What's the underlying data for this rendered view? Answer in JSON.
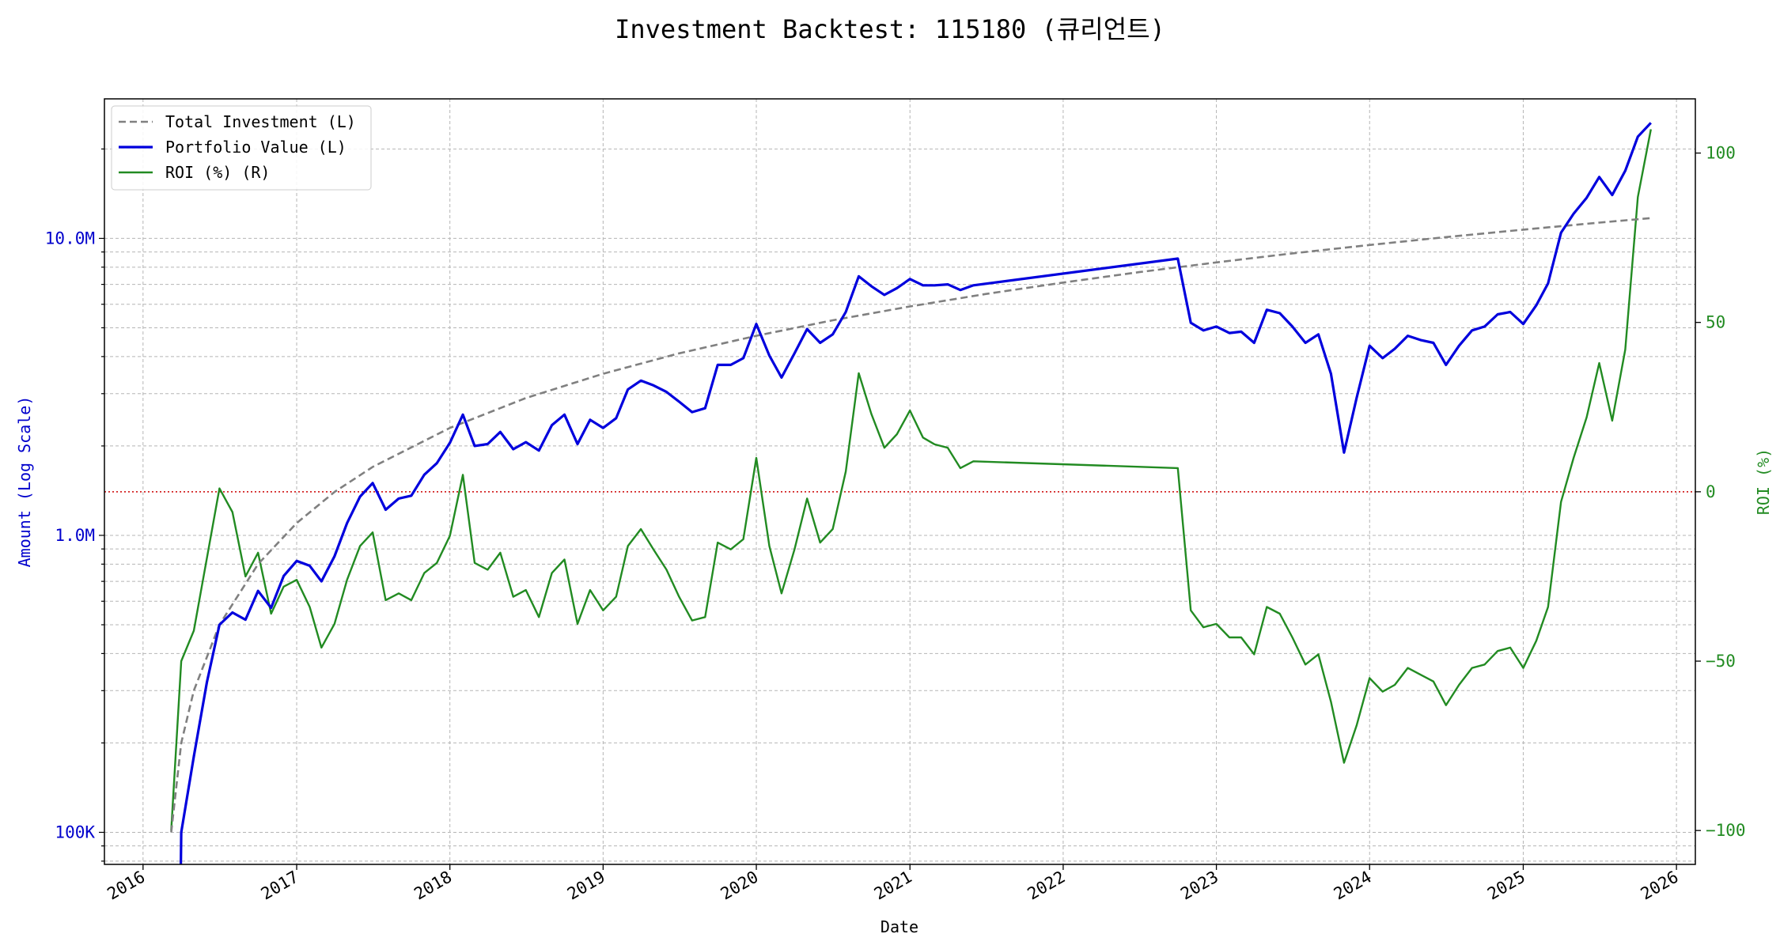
{
  "chart_data": {
    "type": "line",
    "title": "Investment Backtest: 115180 (큐리언트)",
    "xlabel": "Date",
    "ylabel_left": "Amount (Log Scale)",
    "ylabel_right": "ROI (%)",
    "x_range": [
      "2015-10-01",
      "2026-02-15"
    ],
    "y_left_range": [
      78000,
      29500000
    ],
    "y_left_scale": "log",
    "y_right_range": [
      -110,
      116
    ],
    "grid": true,
    "legend_position": "top-left",
    "x_ticks": [
      {
        "date": "2016-01-01",
        "label": "2016"
      },
      {
        "date": "2017-01-01",
        "label": "2017"
      },
      {
        "date": "2018-01-01",
        "label": "2018"
      },
      {
        "date": "2019-01-01",
        "label": "2019"
      },
      {
        "date": "2020-01-01",
        "label": "2020"
      },
      {
        "date": "2021-01-01",
        "label": "2021"
      },
      {
        "date": "2022-01-01",
        "label": "2022"
      },
      {
        "date": "2023-01-01",
        "label": "2023"
      },
      {
        "date": "2024-01-01",
        "label": "2024"
      },
      {
        "date": "2025-01-01",
        "label": "2025"
      },
      {
        "date": "2026-01-01",
        "label": "2026"
      }
    ],
    "y_left_ticks": [
      {
        "value": 100000,
        "label": "100K"
      },
      {
        "value": 1000000,
        "label": "1.0M"
      },
      {
        "value": 10000000,
        "label": "10.0M"
      }
    ],
    "y_right_ticks": [
      {
        "value": -100,
        "label": "−100"
      },
      {
        "value": -50,
        "label": "−50"
      },
      {
        "value": 0,
        "label": "0"
      },
      {
        "value": 50,
        "label": "50"
      },
      {
        "value": 100,
        "label": "100"
      }
    ],
    "reference_line": {
      "axis": "right",
      "value": 0,
      "color": "#cc0000"
    },
    "series": [
      {
        "name": "Total Investment (L)",
        "axis": "left",
        "color": "#808080",
        "style": "dashed",
        "points": [
          [
            "2016-03-08",
            100000
          ],
          [
            "2016-04-01",
            200000
          ],
          [
            "2016-05-01",
            300000
          ],
          [
            "2016-07-01",
            500000
          ],
          [
            "2016-10-01",
            800000
          ],
          [
            "2017-01-01",
            1100000
          ],
          [
            "2017-04-01",
            1400000
          ],
          [
            "2017-07-01",
            1700000
          ],
          [
            "2018-01-01",
            2300000
          ],
          [
            "2018-07-01",
            2900000
          ],
          [
            "2019-01-01",
            3500000
          ],
          [
            "2019-07-01",
            4100000
          ],
          [
            "2020-01-01",
            4700000
          ],
          [
            "2020-07-01",
            5300000
          ],
          [
            "2021-01-01",
            5900000
          ],
          [
            "2021-07-01",
            6500000
          ],
          [
            "2022-01-01",
            7100000
          ],
          [
            "2022-07-01",
            7700000
          ],
          [
            "2023-01-01",
            8300000
          ],
          [
            "2023-07-01",
            8900000
          ],
          [
            "2024-01-01",
            9500000
          ],
          [
            "2024-07-01",
            10100000
          ],
          [
            "2025-01-01",
            10700000
          ],
          [
            "2025-07-01",
            11300000
          ],
          [
            "2025-11-01",
            11700000
          ]
        ]
      },
      {
        "name": "Portfolio Value (L)",
        "axis": "left",
        "color": "#0000dd",
        "style": "solid",
        "points": [
          [
            "2016-03-31",
            78000
          ],
          [
            "2016-04-01",
            100000
          ],
          [
            "2016-05-01",
            180000
          ],
          [
            "2016-06-01",
            320000
          ],
          [
            "2016-07-01",
            500000
          ],
          [
            "2016-08-01",
            550000
          ],
          [
            "2016-09-01",
            520000
          ],
          [
            "2016-10-01",
            650000
          ],
          [
            "2016-11-01",
            570000
          ],
          [
            "2016-12-01",
            730000
          ],
          [
            "2017-01-01",
            820000
          ],
          [
            "2017-02-01",
            790000
          ],
          [
            "2017-03-01",
            700000
          ],
          [
            "2017-04-01",
            850000
          ],
          [
            "2017-05-01",
            1100000
          ],
          [
            "2017-06-01",
            1350000
          ],
          [
            "2017-07-01",
            1500000
          ],
          [
            "2017-08-01",
            1220000
          ],
          [
            "2017-09-01",
            1330000
          ],
          [
            "2017-10-01",
            1360000
          ],
          [
            "2017-11-01",
            1600000
          ],
          [
            "2017-12-01",
            1750000
          ],
          [
            "2018-01-01",
            2050000
          ],
          [
            "2018-02-01",
            2550000
          ],
          [
            "2018-03-01",
            2000000
          ],
          [
            "2018-04-01",
            2030000
          ],
          [
            "2018-05-01",
            2230000
          ],
          [
            "2018-06-01",
            1950000
          ],
          [
            "2018-07-01",
            2060000
          ],
          [
            "2018-08-01",
            1930000
          ],
          [
            "2018-09-01",
            2350000
          ],
          [
            "2018-10-01",
            2550000
          ],
          [
            "2018-11-01",
            2030000
          ],
          [
            "2018-12-01",
            2450000
          ],
          [
            "2019-01-01",
            2300000
          ],
          [
            "2019-02-01",
            2480000
          ],
          [
            "2019-03-01",
            3100000
          ],
          [
            "2019-04-01",
            3320000
          ],
          [
            "2019-05-01",
            3200000
          ],
          [
            "2019-06-01",
            3040000
          ],
          [
            "2019-07-01",
            2820000
          ],
          [
            "2019-08-01",
            2600000
          ],
          [
            "2019-09-01",
            2680000
          ],
          [
            "2019-10-01",
            3750000
          ],
          [
            "2019-11-01",
            3750000
          ],
          [
            "2019-12-01",
            3950000
          ],
          [
            "2020-01-01",
            5150000
          ],
          [
            "2020-02-01",
            4030000
          ],
          [
            "2020-03-01",
            3400000
          ],
          [
            "2020-04-01",
            4100000
          ],
          [
            "2020-05-01",
            4950000
          ],
          [
            "2020-06-01",
            4450000
          ],
          [
            "2020-07-01",
            4750000
          ],
          [
            "2020-08-01",
            5650000
          ],
          [
            "2020-09-01",
            7450000
          ],
          [
            "2020-10-01",
            6900000
          ],
          [
            "2020-11-01",
            6450000
          ],
          [
            "2020-12-01",
            6800000
          ],
          [
            "2021-01-01",
            7300000
          ],
          [
            "2021-02-01",
            6950000
          ],
          [
            "2021-03-01",
            6950000
          ],
          [
            "2021-04-01",
            7000000
          ],
          [
            "2021-05-01",
            6700000
          ],
          [
            "2021-06-01",
            6950000
          ],
          [
            "2022-10-01",
            8550000
          ],
          [
            "2022-11-01",
            5200000
          ],
          [
            "2022-12-01",
            4900000
          ],
          [
            "2023-01-01",
            5050000
          ],
          [
            "2023-02-01",
            4800000
          ],
          [
            "2023-03-01",
            4850000
          ],
          [
            "2023-04-01",
            4450000
          ],
          [
            "2023-05-01",
            5750000
          ],
          [
            "2023-06-01",
            5600000
          ],
          [
            "2023-07-01",
            5050000
          ],
          [
            "2023-08-01",
            4450000
          ],
          [
            "2023-09-01",
            4750000
          ],
          [
            "2023-10-01",
            3500000
          ],
          [
            "2023-11-01",
            1900000
          ],
          [
            "2023-12-01",
            2900000
          ],
          [
            "2024-01-01",
            4350000
          ],
          [
            "2024-02-01",
            3950000
          ],
          [
            "2024-03-01",
            4250000
          ],
          [
            "2024-04-01",
            4700000
          ],
          [
            "2024-05-01",
            4550000
          ],
          [
            "2024-06-01",
            4450000
          ],
          [
            "2024-07-01",
            3750000
          ],
          [
            "2024-08-01",
            4350000
          ],
          [
            "2024-09-01",
            4900000
          ],
          [
            "2024-10-01",
            5050000
          ],
          [
            "2024-11-01",
            5550000
          ],
          [
            "2024-12-01",
            5650000
          ],
          [
            "2025-01-01",
            5150000
          ],
          [
            "2025-02-01",
            5950000
          ],
          [
            "2025-03-01",
            7050000
          ],
          [
            "2025-04-01",
            10450000
          ],
          [
            "2025-05-01",
            12100000
          ],
          [
            "2025-06-01",
            13700000
          ],
          [
            "2025-07-01",
            16100000
          ],
          [
            "2025-08-01",
            14000000
          ],
          [
            "2025-09-01",
            16900000
          ],
          [
            "2025-10-01",
            22000000
          ],
          [
            "2025-11-01",
            24500000
          ]
        ]
      },
      {
        "name": "ROI (%) (R)",
        "axis": "right",
        "color": "#228b22",
        "style": "solid",
        "points": [
          [
            "2016-03-08",
            -100
          ],
          [
            "2016-04-01",
            -50
          ],
          [
            "2016-05-01",
            -41
          ],
          [
            "2016-07-01",
            1
          ],
          [
            "2016-08-01",
            -6
          ],
          [
            "2016-09-01",
            -25
          ],
          [
            "2016-10-01",
            -18
          ],
          [
            "2016-11-01",
            -36
          ],
          [
            "2016-12-01",
            -28
          ],
          [
            "2017-01-01",
            -26
          ],
          [
            "2017-02-01",
            -34
          ],
          [
            "2017-03-01",
            -46
          ],
          [
            "2017-04-01",
            -39
          ],
          [
            "2017-05-01",
            -26
          ],
          [
            "2017-06-01",
            -16
          ],
          [
            "2017-07-01",
            -12
          ],
          [
            "2017-08-01",
            -32
          ],
          [
            "2017-09-01",
            -30
          ],
          [
            "2017-10-01",
            -32
          ],
          [
            "2017-11-01",
            -24
          ],
          [
            "2017-12-01",
            -21
          ],
          [
            "2018-01-01",
            -13
          ],
          [
            "2018-02-01",
            5
          ],
          [
            "2018-03-01",
            -21
          ],
          [
            "2018-04-01",
            -23
          ],
          [
            "2018-05-01",
            -18
          ],
          [
            "2018-06-01",
            -31
          ],
          [
            "2018-07-01",
            -29
          ],
          [
            "2018-08-01",
            -37
          ],
          [
            "2018-09-01",
            -24
          ],
          [
            "2018-10-01",
            -20
          ],
          [
            "2018-11-01",
            -39
          ],
          [
            "2018-12-01",
            -29
          ],
          [
            "2019-01-01",
            -35
          ],
          [
            "2019-02-01",
            -31
          ],
          [
            "2019-03-01",
            -16
          ],
          [
            "2019-04-01",
            -11
          ],
          [
            "2019-05-01",
            -17
          ],
          [
            "2019-06-01",
            -23
          ],
          [
            "2019-07-01",
            -31
          ],
          [
            "2019-08-01",
            -38
          ],
          [
            "2019-09-01",
            -37
          ],
          [
            "2019-10-01",
            -15
          ],
          [
            "2019-11-01",
            -17
          ],
          [
            "2019-12-01",
            -14
          ],
          [
            "2020-01-01",
            10
          ],
          [
            "2020-02-01",
            -16
          ],
          [
            "2020-03-01",
            -30
          ],
          [
            "2020-04-01",
            -17
          ],
          [
            "2020-05-01",
            -2
          ],
          [
            "2020-06-01",
            -15
          ],
          [
            "2020-07-01",
            -11
          ],
          [
            "2020-08-01",
            6
          ],
          [
            "2020-09-01",
            35
          ],
          [
            "2020-10-01",
            23
          ],
          [
            "2020-11-01",
            13
          ],
          [
            "2020-12-01",
            17
          ],
          [
            "2021-01-01",
            24
          ],
          [
            "2021-02-01",
            16
          ],
          [
            "2021-03-01",
            14
          ],
          [
            "2021-04-01",
            13
          ],
          [
            "2021-05-01",
            7
          ],
          [
            "2021-06-01",
            9
          ],
          [
            "2022-10-01",
            7
          ],
          [
            "2022-11-01",
            -35
          ],
          [
            "2022-12-01",
            -40
          ],
          [
            "2023-01-01",
            -39
          ],
          [
            "2023-02-01",
            -43
          ],
          [
            "2023-03-01",
            -43
          ],
          [
            "2023-04-01",
            -48
          ],
          [
            "2023-05-01",
            -34
          ],
          [
            "2023-06-01",
            -36
          ],
          [
            "2023-07-01",
            -43
          ],
          [
            "2023-08-01",
            -51
          ],
          [
            "2023-09-01",
            -48
          ],
          [
            "2023-10-01",
            -62
          ],
          [
            "2023-11-01",
            -80
          ],
          [
            "2023-12-01",
            -69
          ],
          [
            "2024-01-01",
            -55
          ],
          [
            "2024-02-01",
            -59
          ],
          [
            "2024-03-01",
            -57
          ],
          [
            "2024-04-01",
            -52
          ],
          [
            "2024-05-01",
            -54
          ],
          [
            "2024-06-01",
            -56
          ],
          [
            "2024-07-01",
            -63
          ],
          [
            "2024-08-01",
            -57
          ],
          [
            "2024-09-01",
            -52
          ],
          [
            "2024-10-01",
            -51
          ],
          [
            "2024-11-01",
            -47
          ],
          [
            "2024-12-01",
            -46
          ],
          [
            "2025-01-01",
            -52
          ],
          [
            "2025-02-01",
            -44
          ],
          [
            "2025-03-01",
            -34
          ],
          [
            "2025-04-01",
            -3
          ],
          [
            "2025-05-01",
            10
          ],
          [
            "2025-06-01",
            22
          ],
          [
            "2025-07-01",
            38
          ],
          [
            "2025-08-01",
            21
          ],
          [
            "2025-09-01",
            42
          ],
          [
            "2025-10-01",
            87
          ],
          [
            "2025-11-01",
            107
          ]
        ]
      }
    ]
  }
}
